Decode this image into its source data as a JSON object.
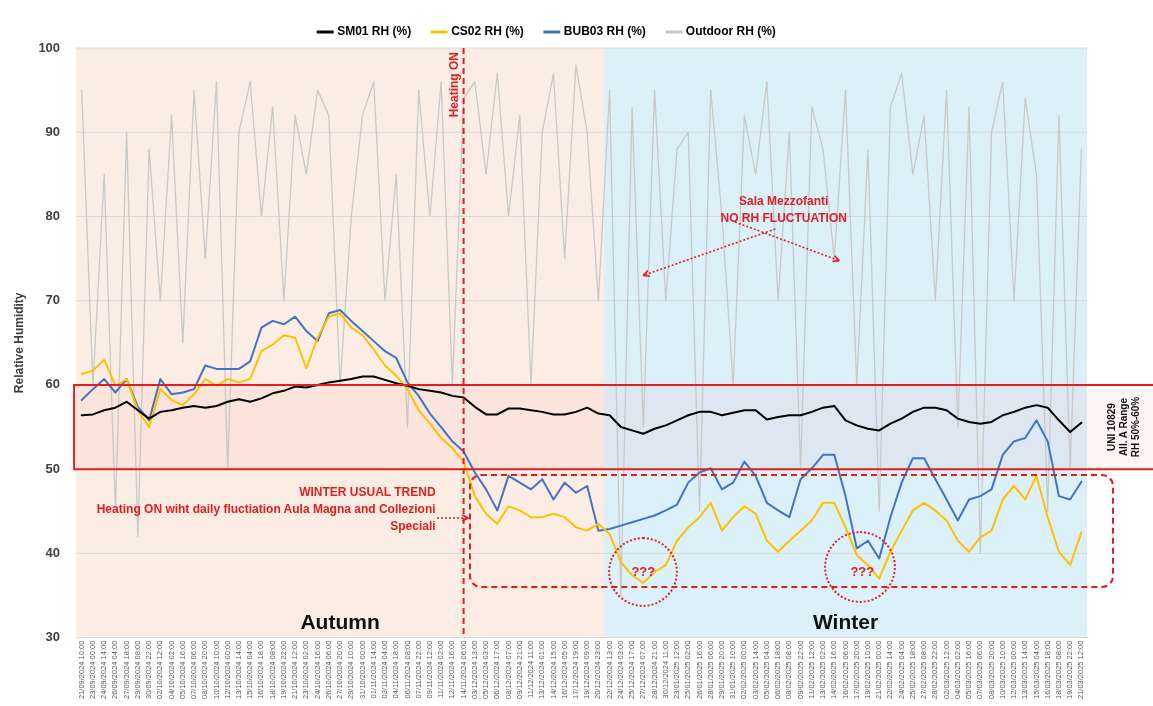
{
  "chart_data": {
    "type": "line",
    "categories": [
      "21/09/2024 10:00",
      "23/09/2024 00:00",
      "24/09/2024 14:00",
      "26/09/2024 04:00",
      "27/09/2024 18:00",
      "29/09/2024 08:00",
      "30/09/2024 22:00",
      "02/10/2024 12:00",
      "04/10/2024 02:00",
      "05/10/2024 16:00",
      "07/10/2024 06:00",
      "08/10/2024 20:00",
      "10/10/2024 10:00",
      "12/10/2024 00:00",
      "13/10/2024 14:00",
      "15/10/2024 04:00",
      "16/10/2024 18:00",
      "18/10/2024 08:00",
      "19/10/2024 22:00",
      "21/10/2024 12:00",
      "23/10/2024 02:00",
      "24/10/2024 16:00",
      "26/10/2024 06:00",
      "27/10/2024 20:00",
      "29/10/2024 10:00",
      "31/10/2024 00:00",
      "01/11/2024 14:00",
      "03/11/2024 04:00",
      "04/11/2024 18:00",
      "06/11/2024 08:00",
      "07/11/2024 22:00",
      "09/11/2024 12:00",
      "11/11/2024 02:00",
      "12/11/2024 16:00",
      "14/11/2024 06:00",
      "03/12/2024 13:00",
      "05/12/2024 03:00",
      "06/12/2024 17:00",
      "08/12/2024 07:00",
      "09/12/2024 21:00",
      "11/12/2024 11:00",
      "13/12/2024 01:00",
      "14/12/2024 15:00",
      "16/12/2024 05:00",
      "17/12/2024 19:00",
      "19/12/2024 09:00",
      "20/12/2024 23:00",
      "22/12/2024 13:00",
      "24/12/2024 03:00",
      "25/12/2024 17:00",
      "27/12/2024 07:00",
      "28/12/2024 21:00",
      "30/12/2024 11:00",
      "23/01/2025 12:00",
      "25/01/2025 02:00",
      "26/01/2025 16:00",
      "28/01/2025 06:00",
      "29/01/2025 20:00",
      "31/01/2025 10:00",
      "02/02/2025 00:00",
      "03/02/2025 14:00",
      "05/02/2025 04:00",
      "06/02/2025 18:00",
      "08/02/2025 08:00",
      "09/02/2025 22:00",
      "11/02/2025 12:00",
      "13/02/2025 02:00",
      "14/02/2025 16:00",
      "16/02/2025 06:00",
      "17/02/2025 20:00",
      "19/02/2025 10:00",
      "21/02/2025 00:00",
      "22/02/2025 14:00",
      "24/02/2025 04:00",
      "25/02/2025 18:00",
      "27/02/2025 08:00",
      "28/02/2025 22:00",
      "02/03/2025 12:00",
      "04/03/2025 02:00",
      "05/03/2025 16:00",
      "07/03/2025 06:00",
      "08/03/2025 20:00",
      "10/03/2025 10:00",
      "12/03/2025 00:00",
      "13/03/2025 14:00",
      "15/03/2025 04:00",
      "16/03/2025 18:00",
      "18/03/2025 08:00",
      "19/03/2025 22:00",
      "21/03/2025 12:00"
    ],
    "series": [
      {
        "name": "SM01 RH (%)",
        "color": "#000000",
        "values": [
          56.4,
          56.5,
          57.0,
          57.3,
          58.0,
          57.0,
          56.0,
          56.8,
          57.0,
          57.3,
          57.5,
          57.3,
          57.5,
          58.0,
          58.3,
          58.0,
          58.4,
          59.0,
          59.3,
          59.8,
          59.7,
          60.0,
          60.3,
          60.5,
          60.7,
          61.0,
          61.0,
          60.6,
          60.2,
          59.9,
          59.5,
          59.3,
          59.1,
          58.7,
          58.5,
          57.4,
          56.5,
          56.5,
          57.2,
          57.2,
          57.0,
          56.8,
          56.5,
          56.5,
          56.8,
          57.3,
          56.6,
          56.4,
          55.0,
          54.6,
          54.2,
          54.8,
          55.2,
          55.8,
          56.4,
          56.8,
          56.8,
          56.4,
          56.7,
          57.0,
          57.0,
          55.9,
          56.2,
          56.4,
          56.4,
          56.8,
          57.3,
          57.5,
          55.8,
          55.2,
          54.8,
          54.6,
          55.4,
          56.0,
          56.8,
          57.3,
          57.3,
          57.0,
          56.0,
          55.6,
          55.4,
          55.6,
          56.4,
          56.8,
          57.3,
          57.6,
          57.3,
          55.8,
          54.4,
          55.5
        ]
      },
      {
        "name": "CS02 RH (%)",
        "color": "#ffc000",
        "values": [
          61.3,
          61.7,
          63.0,
          59.9,
          60.7,
          57.0,
          55.0,
          59.5,
          58.2,
          57.6,
          58.9,
          60.7,
          59.9,
          60.7,
          60.3,
          60.7,
          64.0,
          64.8,
          65.9,
          65.6,
          62.0,
          65.6,
          68.1,
          68.5,
          66.8,
          65.9,
          64.2,
          62.3,
          61.1,
          59.5,
          57.0,
          55.4,
          53.7,
          52.5,
          50.9,
          46.8,
          44.7,
          43.5,
          45.6,
          45.1,
          44.3,
          44.3,
          44.7,
          44.3,
          43.1,
          42.7,
          43.5,
          42.3,
          39.0,
          37.4,
          36.5,
          37.8,
          38.6,
          41.5,
          43.1,
          44.3,
          46.0,
          42.7,
          44.3,
          45.6,
          44.7,
          41.5,
          40.2,
          41.5,
          42.7,
          43.9,
          46.0,
          46.0,
          43.1,
          39.8,
          38.6,
          37.0,
          40.2,
          42.7,
          45.1,
          46.0,
          45.1,
          43.9,
          41.5,
          40.2,
          41.9,
          42.7,
          46.4,
          48.0,
          46.4,
          49.2,
          44.3,
          40.2,
          38.6,
          42.5
        ]
      },
      {
        "name": "BUB03 RH (%)",
        "color": "#4472c4",
        "values": [
          58.2,
          59.5,
          60.7,
          59.1,
          60.7,
          57.4,
          55.8,
          60.7,
          58.9,
          59.1,
          59.5,
          62.3,
          61.9,
          61.9,
          61.9,
          62.8,
          66.8,
          67.6,
          67.2,
          68.1,
          66.4,
          65.2,
          68.5,
          68.9,
          67.6,
          66.4,
          65.2,
          64.0,
          63.2,
          60.3,
          58.7,
          56.6,
          55.0,
          53.3,
          52.1,
          49.6,
          47.6,
          45.1,
          49.2,
          48.4,
          47.6,
          48.8,
          46.4,
          48.4,
          47.2,
          48.0,
          42.7,
          42.9,
          43.3,
          43.7,
          44.1,
          44.5,
          45.1,
          45.8,
          48.4,
          49.6,
          50.1,
          47.6,
          48.4,
          50.9,
          49.2,
          46.0,
          45.1,
          44.3,
          48.8,
          50.1,
          51.7,
          51.7,
          46.8,
          40.6,
          41.5,
          39.4,
          44.3,
          48.4,
          51.3,
          51.3,
          48.8,
          46.4,
          43.9,
          46.4,
          46.8,
          47.6,
          51.7,
          53.3,
          53.7,
          55.8,
          53.3,
          46.8,
          46.4,
          48.5
        ]
      },
      {
        "name": "Outdoor RH (%)",
        "color": "#c8c8c8",
        "values": [
          95,
          60,
          85,
          45,
          90,
          42,
          88,
          70,
          92,
          65,
          95,
          75,
          96,
          50,
          90,
          96,
          80,
          93,
          70,
          92,
          85,
          95,
          92,
          60,
          80,
          92,
          96,
          70,
          85,
          55,
          95,
          80,
          96,
          60,
          94,
          96,
          85,
          97,
          80,
          92,
          60,
          90,
          97,
          75,
          98,
          90,
          70,
          95,
          35,
          93,
          55,
          95,
          70,
          88,
          90,
          45,
          95,
          80,
          60,
          92,
          85,
          96,
          70,
          90,
          50,
          93,
          88,
          75,
          95,
          60,
          88,
          45,
          93,
          97,
          85,
          92,
          70,
          95,
          55,
          93,
          40,
          90,
          96,
          70,
          94,
          85,
          45,
          92,
          50,
          88
        ]
      }
    ],
    "ylabel": "Relative Humidity",
    "ylim": [
      30,
      100
    ],
    "yticks": [
      30,
      40,
      50,
      60,
      70,
      80,
      90,
      100
    ],
    "grid": "y",
    "legend": "top",
    "bands": [
      {
        "axis": "x",
        "from": "21/09/2024 10:00",
        "to": "20/12/2024 23:00",
        "label": "Autumn",
        "color": "#fcede4"
      },
      {
        "axis": "x",
        "from": "22/12/2024 13:00",
        "to": "21/03/2025 12:00",
        "label": "Winter",
        "color": "#dcf0fa"
      },
      {
        "axis": "y",
        "from": 50,
        "to": 60,
        "label": "UNI 10829\nAll. A Range\nRH 50%-60%",
        "color": "#e02020"
      }
    ],
    "ref_lines": [
      {
        "axis": "x",
        "value": "14/11/2024 06:00",
        "label": "Heating ON",
        "color": "#e02020",
        "line_style": "dashed"
      }
    ],
    "annotations": [
      "WINTER USUAL TREND",
      "Heating ON wiht daily fluctiation Aula Magna and Collezioni Speciali",
      {
        "text": "Sala Mezzofanti\nNO RH FLUCTUATION",
        "x": "27/12/2024 07:00",
        "y": 73
      },
      "???",
      "???"
    ]
  }
}
